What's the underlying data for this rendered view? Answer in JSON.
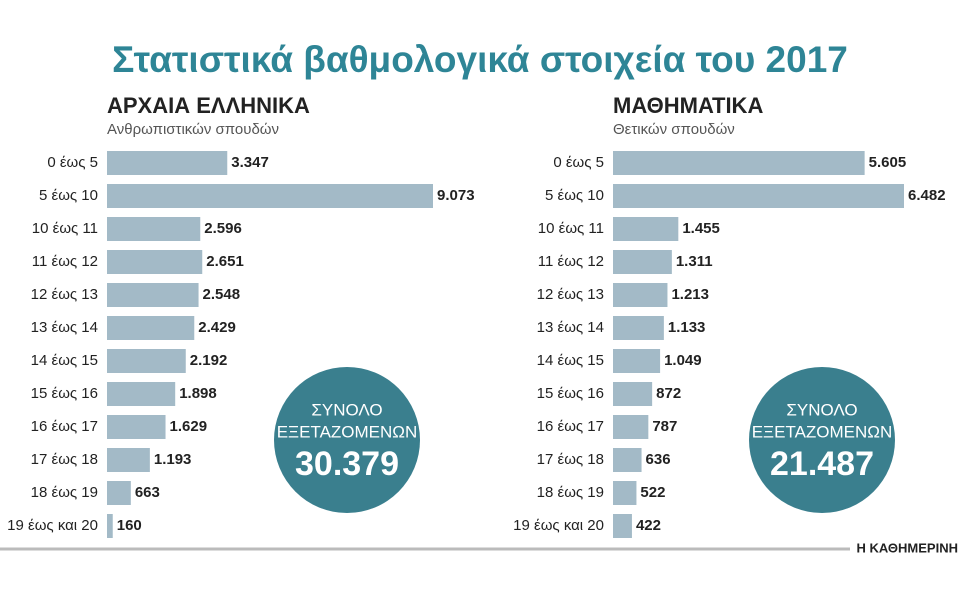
{
  "title": "Στατιστικά βαθμολογικά στοιχεία του 2017",
  "source": "Η ΚΑΘΗΜΕΡΙΝΗ",
  "chart_data": [
    {
      "type": "bar",
      "orientation": "horizontal",
      "title": "ΑΡΧΑΙΑ ΕΛΛΗΝΙΚΑ",
      "subtitle": "Ανθρωπιστικών σπουδών",
      "categories": [
        "0 έως 5",
        "5 έως 10",
        "10 έως 11",
        "11 έως 12",
        "12 έως 13",
        "13 έως 14",
        "14 έως 15",
        "15 έως 16",
        "16 έως 17",
        "17 έως 18",
        "18 έως 19",
        "19 έως και 20"
      ],
      "values": [
        3347,
        9073,
        2596,
        2651,
        2548,
        2429,
        2192,
        1898,
        1629,
        1193,
        663,
        160
      ],
      "value_labels": [
        "3.347",
        "9.073",
        "2.596",
        "2.651",
        "2.548",
        "2.429",
        "2.192",
        "1.898",
        "1.629",
        "1.193",
        "663",
        "160"
      ],
      "color": "#a3bac7",
      "total": {
        "label": [
          "ΣΥΝΟΛΟ",
          "ΕΞΕΤΑΖΟΜΕΝΩΝ"
        ],
        "value": 30379,
        "value_label": "30.379",
        "color": "#3a7f8e"
      }
    },
    {
      "type": "bar",
      "orientation": "horizontal",
      "title": "ΜΑΘΗΜΑΤΙΚΑ",
      "subtitle": "Θετικών σπουδών",
      "categories": [
        "0 έως 5",
        "5 έως 10",
        "10 έως 11",
        "11 έως 12",
        "12 έως 13",
        "13 έως 14",
        "14 έως 15",
        "15 έως 16",
        "16 έως 17",
        "17 έως 18",
        "18 έως 19",
        "19 έως και 20"
      ],
      "values": [
        5605,
        6482,
        1455,
        1311,
        1213,
        1133,
        1049,
        872,
        787,
        636,
        522,
        422
      ],
      "value_labels": [
        "5.605",
        "6.482",
        "1.455",
        "1.311",
        "1.213",
        "1.133",
        "1.049",
        "872",
        "787",
        "636",
        "522",
        "422"
      ],
      "color": "#a3bac7",
      "total": {
        "label": [
          "ΣΥΝΟΛΟ",
          "ΕΞΕΤΑΖΟΜΕΝΩΝ"
        ],
        "value": 21487,
        "value_label": "21.487",
        "color": "#3a7f8e"
      }
    }
  ]
}
